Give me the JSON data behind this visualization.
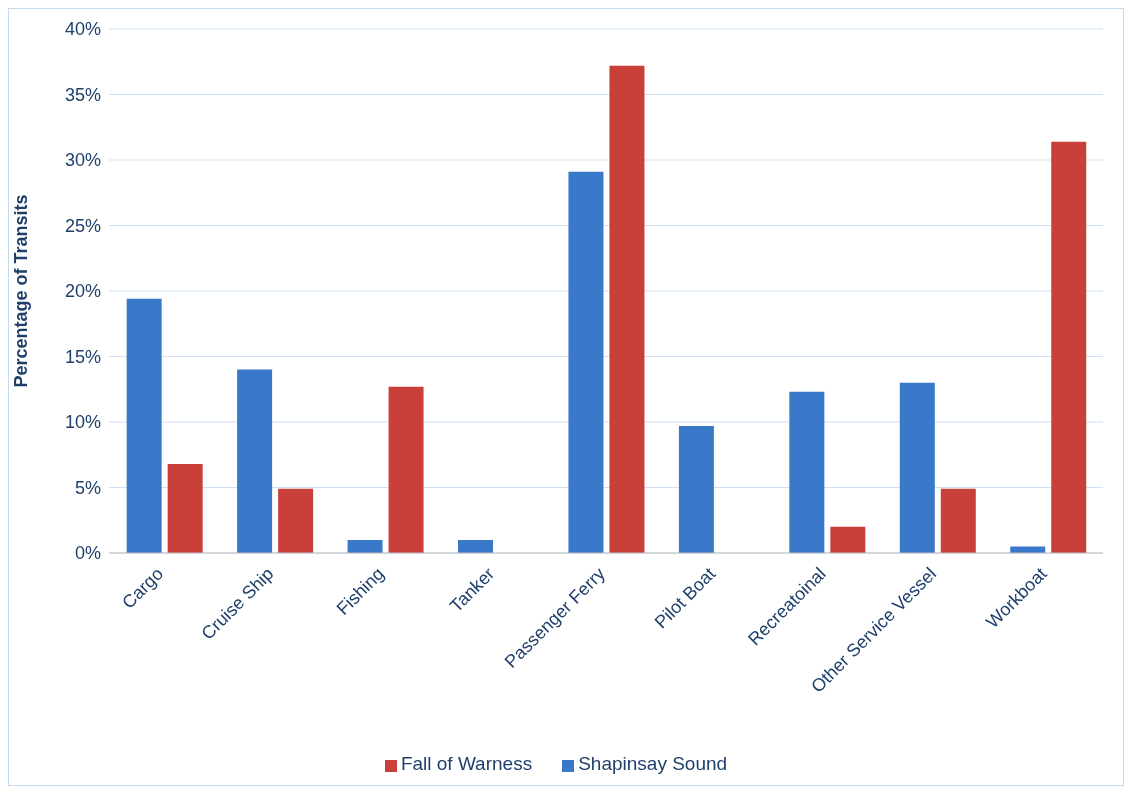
{
  "chart_data": {
    "type": "bar",
    "ylabel": "Percentage of Transits",
    "categories": [
      "Cargo",
      "Cruise Ship",
      "Fishing",
      "Tanker",
      "Passenger Ferry",
      "Pilot Boat",
      "Recreatoinal",
      "Other Service Vessel",
      "Workboat"
    ],
    "series": [
      {
        "name": "Shapinsay Sound",
        "color": "#3a78c9",
        "values": [
          19.4,
          14.0,
          1.0,
          1.0,
          29.1,
          9.7,
          12.3,
          13.0,
          0.5
        ]
      },
      {
        "name": "Fall of Warness",
        "color": "#c9403a",
        "values": [
          6.8,
          4.9,
          12.7,
          0,
          37.2,
          0,
          2.0,
          4.9,
          31.4
        ]
      }
    ],
    "ylim": [
      0,
      40
    ],
    "yticks": [
      {
        "value": 0,
        "label": "0%"
      },
      {
        "value": 5,
        "label": "5%"
      },
      {
        "value": 10,
        "label": "10%"
      },
      {
        "value": 15,
        "label": "15%"
      },
      {
        "value": 20,
        "label": "20%"
      },
      {
        "value": 25,
        "label": "25%"
      },
      {
        "value": 30,
        "label": "30%"
      },
      {
        "value": 35,
        "label": "35%"
      },
      {
        "value": 40,
        "label": "40%"
      }
    ],
    "grid": "y",
    "legend": "bottom"
  }
}
